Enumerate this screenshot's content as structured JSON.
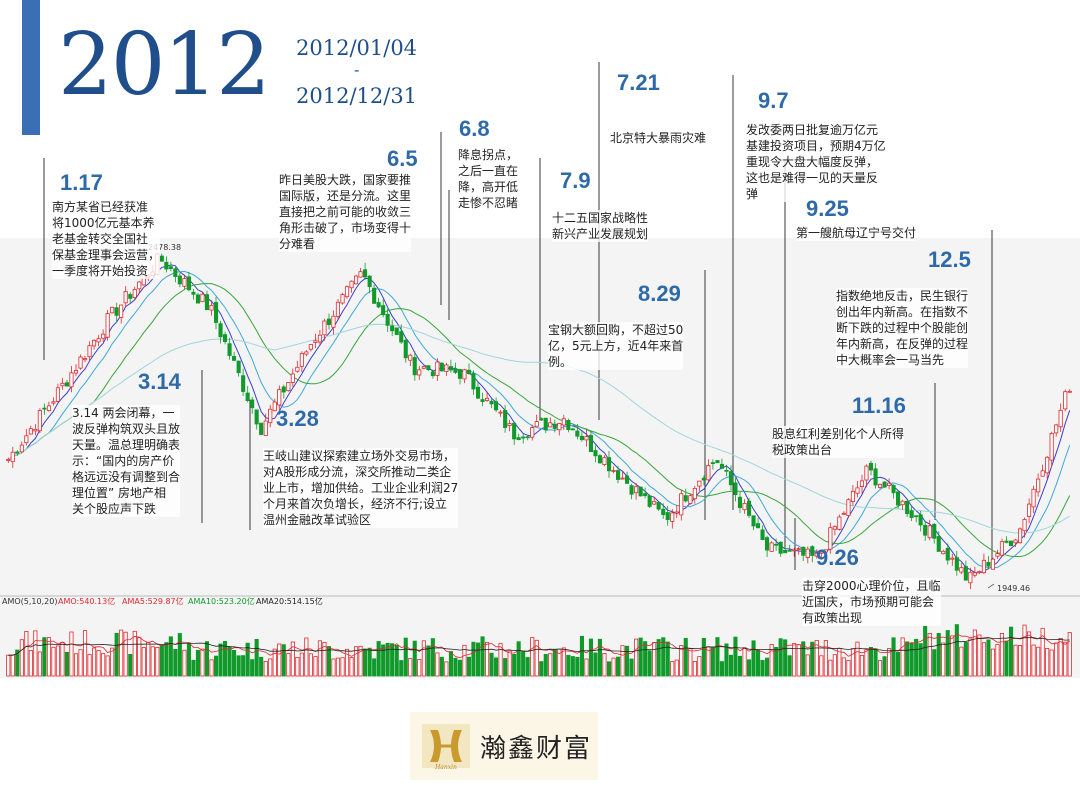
{
  "header": {
    "year": "2012",
    "start_date": "2012/01/04",
    "dash": "-",
    "end_date": "2012/12/31"
  },
  "events": [
    {
      "date": "1.17",
      "text": "南方某省已经获准\n将1000亿元基本养\n老基金转交全国社\n保基金理事会运营，\n一季度将开始投资"
    },
    {
      "date": "3.14",
      "text": "3.14 两会闭幕，一\n波反弹构筑双头且放\n天量。温总理明确表\n示：“国内的房产价\n格远远没有调整到合\n理位置” 房地产相\n关个股应声下跌"
    },
    {
      "date": "3.28",
      "text": "王岐山建议探索建立场外交易市场，\n对A股形成分流，深交所推动二类企\n业上市，增加供给。工业企业利润27\n个月来首次负增长，经济不行;设立\n温州金融改革试验区"
    },
    {
      "date": "6.5",
      "text": "昨日美股大跌，国家要推\n国际版，还是分流。这里\n直接把之前可能的收敛三\n角形击破了，市场变得十\n分难看"
    },
    {
      "date": "6.8",
      "text": "降息拐点，\n之后一直在\n降，高开低\n走惨不忍睹"
    },
    {
      "date": "7.9",
      "text": "十二五国家战略性\n新兴产业发展规划"
    },
    {
      "date": "7.21",
      "text": "北京特大暴雨灾难"
    },
    {
      "date": "8.29",
      "text": "宝钢大额回购，不超过50\n亿，5元上方，近4年来首\n例。"
    },
    {
      "date": "9.7",
      "text": "发改委两日批复逾万亿元\n基建投资项目，预期4万亿\n重现令大盘大幅度反弹，\n这也是难得一见的天量反\n弹"
    },
    {
      "date": "9.25",
      "text": "第一艘航母辽宁号交付"
    },
    {
      "date": "9.26",
      "text": "击穿2000心理价位，且临\n近国庆，市场预期可能会\n有政策出现"
    },
    {
      "date": "11.16",
      "text": "股息红利差别化个人所得\n税政策出台"
    },
    {
      "date": "12.5",
      "text": "指数绝地反击，民生银行\n创出年内新高。在指数不\n断下跌的过程中个股能创\n年内新高，在反弹的过程\n中大概率会一马当先"
    }
  ],
  "chart_data": {
    "type": "line",
    "series": [
      {
        "name": "指数",
        "dates": [
          "01-04",
          "01-17",
          "02-10",
          "02-27",
          "03-14",
          "03-28",
          "04-20",
          "05-07",
          "06-05",
          "06-08",
          "07-05",
          "07-09",
          "07-21",
          "08-29",
          "09-07",
          "09-25",
          "09-26",
          "10-10",
          "11-16",
          "12-03",
          "12-05",
          "12-31"
        ],
        "values": [
          2148,
          2260,
          2380,
          2478,
          2395,
          2200,
          2340,
          2453,
          2300,
          2290,
          2190,
          2215,
          2130,
          2050,
          2150,
          2000,
          1985,
          2130,
          2050,
          1949,
          2030,
          2270
        ]
      }
    ],
    "annotations": {
      "high": "2478.38",
      "low": "1949.46"
    },
    "volume_legend": {
      "amo": "AMO(5,10,20)",
      "amo_value": "AMO:540.13亿",
      "ama5": "AMA5:529.87亿",
      "ama10": "AMA10:523.20亿",
      "ama20": "AMA20:514.15亿"
    },
    "colors": {
      "up": "#e0282e",
      "down": "#0f9a2b",
      "ma5": "#3a3fcf",
      "ma10": "#40a9d8",
      "ma20": "#3aa63a",
      "ma60": "#9fd6dc",
      "vol_line": "#e0282e",
      "vol_line2": "#222222"
    }
  },
  "brand": {
    "name": "瀚鑫财富",
    "sub": "Hanxin"
  }
}
